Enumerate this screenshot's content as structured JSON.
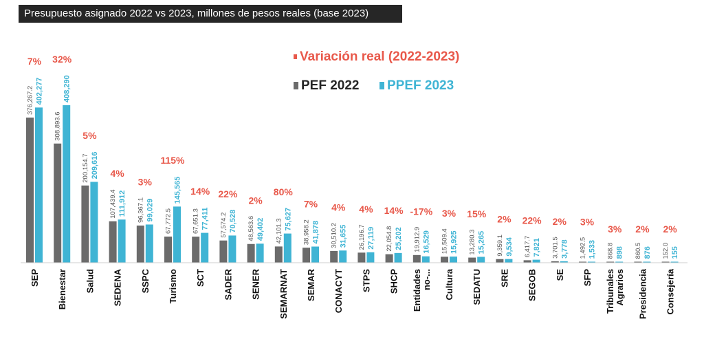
{
  "title": "Presupuesto asignado 2022 vs 2023, millones de pesos reales (base 2023)",
  "legend": {
    "variation": "Variación real (2022-2023)",
    "pef": "PEF 2022",
    "ppef": "PPEF 2023"
  },
  "colors": {
    "pef": "#6b6b6b",
    "ppef": "#3fb4d4",
    "variation": "#e8584a",
    "title_bg": "#262626"
  },
  "chart_data": {
    "type": "bar",
    "title": "Presupuesto asignado 2022 vs 2023, millones de pesos reales (base 2023)",
    "ylim": [
      0,
      410000
    ],
    "categories": [
      {
        "label": "SEP",
        "pef": 376267.2,
        "ppef": 402277,
        "pef_label": "376,267.2",
        "ppef_label": "402,277",
        "variation": "7%"
      },
      {
        "label": "Bienestar",
        "pef": 308893.6,
        "ppef": 408290,
        "pef_label": "308,893.6",
        "ppef_label": "408,290",
        "variation": "32%"
      },
      {
        "label": "Salud",
        "pef": 200154.7,
        "ppef": 209616,
        "pef_label": "200,154.7",
        "ppef_label": "209,616",
        "variation": "5%"
      },
      {
        "label": "SEDENA",
        "pef": 107439.4,
        "ppef": 111912,
        "pef_label": "107,439.4",
        "ppef_label": "111,912",
        "variation": "4%"
      },
      {
        "label": "SSPC",
        "pef": 96367.1,
        "ppef": 99029,
        "pef_label": "96,367.1",
        "ppef_label": "99,029",
        "variation": "3%"
      },
      {
        "label": "Turismo",
        "pef": 67772.5,
        "ppef": 145565,
        "pef_label": "67,772.5",
        "ppef_label": "145,565",
        "variation": "115%"
      },
      {
        "label": "SCT",
        "pef": 67651.3,
        "ppef": 77411,
        "pef_label": "67,651.3",
        "ppef_label": "77,411",
        "variation": "14%"
      },
      {
        "label": "SADER",
        "pef": 57574.2,
        "ppef": 70528,
        "pef_label": "57,574.2",
        "ppef_label": "70,528",
        "variation": "22%"
      },
      {
        "label": "SENER",
        "pef": 48563.6,
        "ppef": 49402,
        "pef_label": "48,563.6",
        "ppef_label": "49,402",
        "variation": "2%"
      },
      {
        "label": "SEMARNAT",
        "pef": 42101.3,
        "ppef": 75627,
        "pef_label": "42,101.3",
        "ppef_label": "75,627",
        "variation": "80%"
      },
      {
        "label": "SEMAR",
        "pef": 38958.2,
        "ppef": 41878,
        "pef_label": "38,958.2",
        "ppef_label": "41,878",
        "variation": "7%"
      },
      {
        "label": "CONACYT",
        "pef": 30510.2,
        "ppef": 31655,
        "pef_label": "30,510.2",
        "ppef_label": "31,655",
        "variation": "4%"
      },
      {
        "label": "STPS",
        "pef": 26196.7,
        "ppef": 27119,
        "pef_label": "26,196.7",
        "ppef_label": "27,119",
        "variation": "4%"
      },
      {
        "label": "SHCP",
        "pef": 22054.8,
        "ppef": 25202,
        "pef_label": "22,054.8",
        "ppef_label": "25,202",
        "variation": "14%"
      },
      {
        "label": "Entidades no-...",
        "lines": [
          "Entidades",
          "no-..."
        ],
        "pef": 19912.9,
        "ppef": 16529,
        "pef_label": "19,912.9",
        "ppef_label": "16,529",
        "variation": "-17%"
      },
      {
        "label": "Cultura",
        "pef": 15509.4,
        "ppef": 15925,
        "pef_label": "15,509.4",
        "ppef_label": "15,925",
        "variation": "3%"
      },
      {
        "label": "SEDATU",
        "pef": 13280.3,
        "ppef": 15265,
        "pef_label": "13,280.3",
        "ppef_label": "15,265",
        "variation": "15%"
      },
      {
        "label": "SRE",
        "pef": 9359.1,
        "ppef": 9534,
        "pef_label": "9,359.1",
        "ppef_label": "9,534",
        "variation": "2%"
      },
      {
        "label": "SEGOB",
        "pef": 6417.7,
        "ppef": 7821,
        "pef_label": "6,417.7",
        "ppef_label": "7,821",
        "variation": "22%"
      },
      {
        "label": "SE",
        "pef": 3701.5,
        "ppef": 3778,
        "pef_label": "3,701.5",
        "ppef_label": "3,778",
        "variation": "2%"
      },
      {
        "label": "SFP",
        "pef": 1492.5,
        "ppef": 1533,
        "pef_label": "1,492.5",
        "ppef_label": "1,533",
        "variation": "3%"
      },
      {
        "label": "Tribunales Agrarios",
        "lines": [
          "Tribunales",
          "Agrarios"
        ],
        "pef": 868.8,
        "ppef": 898,
        "pef_label": "868.8",
        "ppef_label": "898",
        "variation": "3%"
      },
      {
        "label": "Presidencia",
        "pef": 860.5,
        "ppef": 876,
        "pef_label": "860.5",
        "ppef_label": "876",
        "variation": "2%"
      },
      {
        "label": "Consejería",
        "pef": 152.0,
        "ppef": 155,
        "pef_label": "152.0",
        "ppef_label": "155",
        "variation": "2%"
      }
    ],
    "series": [
      {
        "name": "PEF 2022",
        "key": "pef"
      },
      {
        "name": "PPEF 2023",
        "key": "ppef"
      }
    ],
    "grid": false,
    "legend_position": "top-center"
  }
}
